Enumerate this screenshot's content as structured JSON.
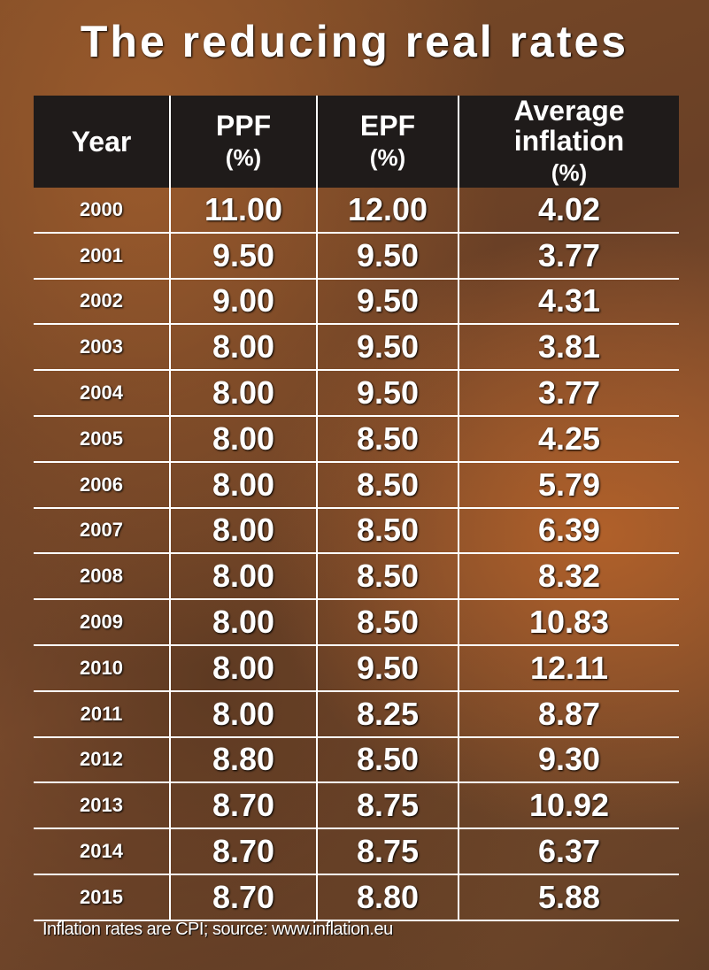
{
  "title": "The reducing real rates",
  "chart_data": {
    "type": "table",
    "title": "The reducing real rates",
    "headers": [
      {
        "main": "Year",
        "unit": ""
      },
      {
        "main": "PPF",
        "unit": "(%)"
      },
      {
        "main": "EPF",
        "unit": "(%)"
      },
      {
        "main": "Average inflation",
        "unit": "(%)"
      }
    ],
    "rows": [
      [
        "2000",
        "11.00",
        "12.00",
        "4.02"
      ],
      [
        "2001",
        "9.50",
        "9.50",
        "3.77"
      ],
      [
        "2002",
        "9.00",
        "9.50",
        "4.31"
      ],
      [
        "2003",
        "8.00",
        "9.50",
        "3.81"
      ],
      [
        "2004",
        "8.00",
        "9.50",
        "3.77"
      ],
      [
        "2005",
        "8.00",
        "8.50",
        "4.25"
      ],
      [
        "2006",
        "8.00",
        "8.50",
        "5.79"
      ],
      [
        "2007",
        "8.00",
        "8.50",
        "6.39"
      ],
      [
        "2008",
        "8.00",
        "8.50",
        "8.32"
      ],
      [
        "2009",
        "8.00",
        "8.50",
        "10.83"
      ],
      [
        "2010",
        "8.00",
        "9.50",
        "12.11"
      ],
      [
        "2011",
        "8.00",
        "8.25",
        "8.87"
      ],
      [
        "2012",
        "8.80",
        "8.50",
        "9.30"
      ],
      [
        "2013",
        "8.70",
        "8.75",
        "10.92"
      ],
      [
        "2014",
        "8.70",
        "8.75",
        "6.37"
      ],
      [
        "2015",
        "8.70",
        "8.80",
        "5.88"
      ]
    ]
  },
  "footnote": "Inflation rates are CPI; source: www.inflation.eu"
}
